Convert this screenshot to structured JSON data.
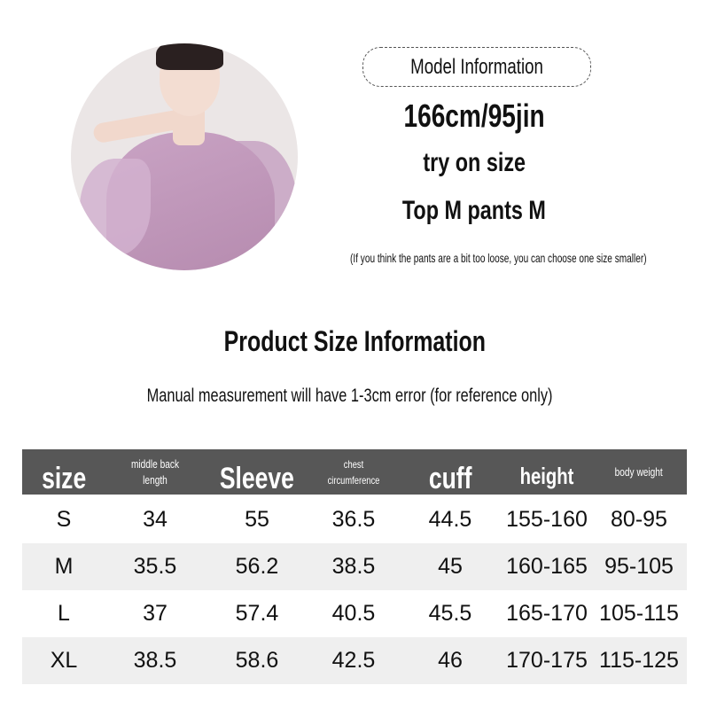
{
  "model": {
    "title": "Model Information",
    "measurements": "166cm/95jin",
    "try_on_label": "try on size",
    "sizes": "Top M pants M",
    "note": "(If you think the pants are a bit too loose, you can choose one size smaller)"
  },
  "product": {
    "title": "Product Size Information",
    "note": "Manual measurement will have 1-3cm error (for reference only)"
  },
  "table": {
    "headers": [
      "size",
      "middle back length",
      "Sleeve",
      "chest circumference",
      "cuff",
      "height",
      "body weight"
    ],
    "rows": [
      [
        "S",
        "34",
        "55",
        "36.5",
        "44.5",
        "155-160",
        "80-95"
      ],
      [
        "M",
        "35.5",
        "56.2",
        "38.5",
        "45",
        "160-165",
        "95-105"
      ],
      [
        "L",
        "37",
        "57.4",
        "40.5",
        "45.5",
        "165-170",
        "105-115"
      ],
      [
        "XL",
        "38.5",
        "58.6",
        "42.5",
        "46",
        "170-175",
        "115-125"
      ]
    ]
  },
  "colors": {
    "header_bg": "#575757",
    "alt_row_bg": "#efefef",
    "garment": "#c29cbd"
  }
}
